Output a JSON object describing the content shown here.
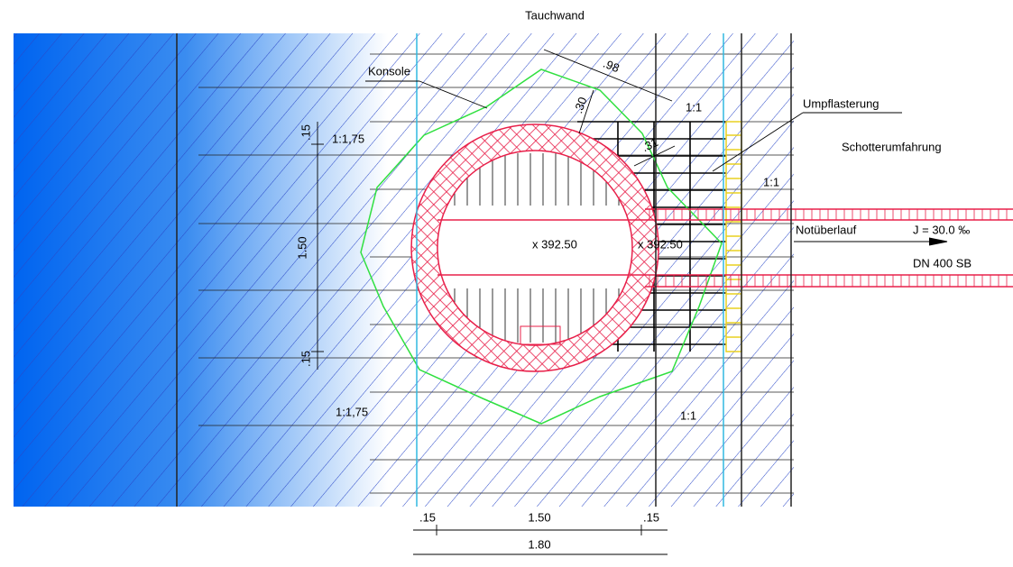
{
  "header": {
    "title": "Tauchwand"
  },
  "labels": [
    "Konsole",
    "Umpflasterung",
    "Schotterumfahrung",
    "Notüberlauf",
    "J = 30.0 ‰",
    "DN 400 SB"
  ],
  "slopes": [
    "1:1",
    "1:1,75",
    "1:1",
    "1:1,75",
    "1:1"
  ],
  "elevations": [
    "x 392.50",
    "x 392.50"
  ],
  "dimensions": {
    "diagonal": [
      ".98",
      ".30",
      ".31"
    ],
    "vertical": [
      ".15",
      "1.50",
      ".15"
    ],
    "horizontal": [
      ".15",
      "1.50",
      ".15"
    ],
    "total": "1.80"
  }
}
